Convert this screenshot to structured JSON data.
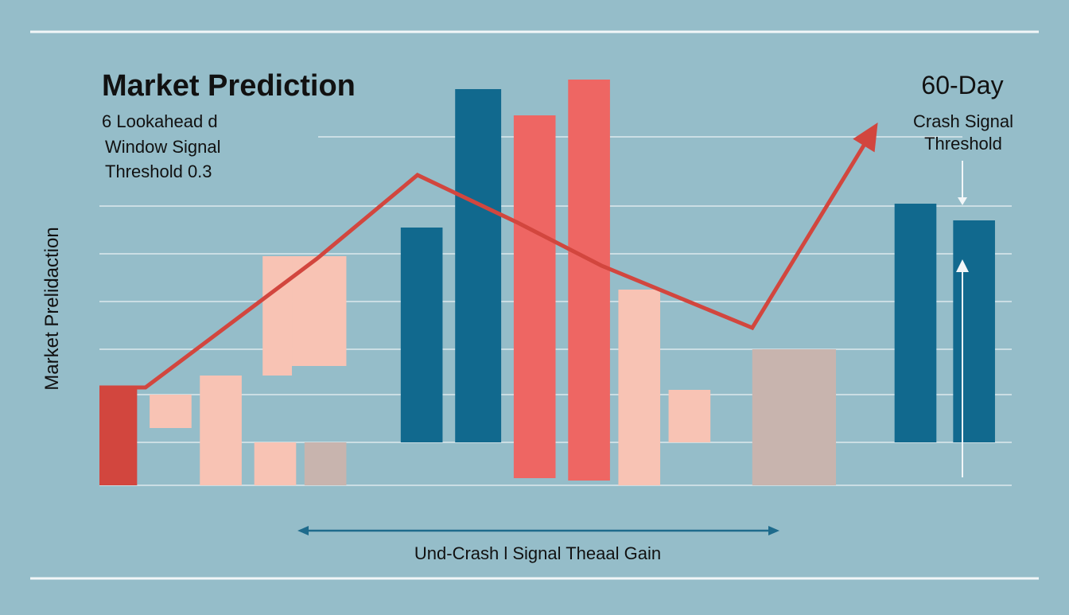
{
  "chart_data": {
    "type": "bar",
    "title": "Market Prediction",
    "subtitle_lines": [
      "6  Lookahead d",
      "Window Signal",
      "Threshold  0.3"
    ],
    "right_title": "60-Day",
    "right_subtitle_lines": [
      "Crash Signal",
      "Threshold"
    ],
    "ylabel": "Market Prelidaction",
    "xlabel": "Und-Crash l Signal Theaal  Gain",
    "grid": true,
    "colors": {
      "red": "#d2463e",
      "coral": "#ee6663",
      "peach": "#f8c3b4",
      "blue": "#11698e",
      "taupe": "#c8b4ae",
      "arrow": "#d2463e",
      "axis_arrow": "#1e6b8c",
      "grid": "#dde9ee",
      "frame": "#f2f6f8"
    },
    "bars": [
      {
        "x0": 0.0,
        "x1": 0.45,
        "y0": 0.0,
        "y1": 2.05,
        "color": "red"
      },
      {
        "x0": 0.6,
        "x1": 1.1,
        "y0": 1.2,
        "y1": 1.9,
        "color": "peach"
      },
      {
        "x0": 1.2,
        "x1": 1.7,
        "y0": 0.0,
        "y1": 2.3,
        "color": "peach"
      },
      {
        "x0": 1.85,
        "x1": 2.35,
        "y0": 0.0,
        "y1": 0.9,
        "color": "peach"
      },
      {
        "x0": 2.45,
        "x1": 2.95,
        "y0": 0.0,
        "y1": 0.9,
        "color": "taupe"
      },
      {
        "x0": 1.95,
        "x1": 2.3,
        "y0": 2.3,
        "y1": 4.8,
        "color": "peach"
      },
      {
        "x0": 2.3,
        "x1": 2.95,
        "y0": 2.5,
        "y1": 4.8,
        "color": "peach"
      },
      {
        "x0": 3.6,
        "x1": 4.1,
        "y0": 0.9,
        "y1": 5.4,
        "color": "blue"
      },
      {
        "x0": 4.25,
        "x1": 4.8,
        "y0": 0.9,
        "y1": 8.3,
        "color": "blue"
      },
      {
        "x0": 4.95,
        "x1": 5.45,
        "y0": 0.15,
        "y1": 7.75,
        "color": "coral"
      },
      {
        "x0": 5.6,
        "x1": 6.1,
        "y0": 0.1,
        "y1": 8.5,
        "color": "coral"
      },
      {
        "x0": 6.2,
        "x1": 6.7,
        "y0": 0.0,
        "y1": 4.1,
        "color": "peach"
      },
      {
        "x0": 6.8,
        "x1": 7.3,
        "y0": 0.9,
        "y1": 2.0,
        "color": "peach"
      },
      {
        "x0": 7.8,
        "x1": 8.8,
        "y0": 0.0,
        "y1": 2.85,
        "color": "taupe"
      },
      {
        "x0": 9.5,
        "x1": 10.0,
        "y0": 0.9,
        "y1": 5.9,
        "color": "blue"
      },
      {
        "x0": 10.2,
        "x1": 10.7,
        "y0": 0.9,
        "y1": 5.55,
        "color": "blue"
      }
    ],
    "trend_line": {
      "x": [
        0.0,
        0.55,
        2.6,
        2.6,
        3.8,
        5.0,
        6.0,
        7.8,
        9.3
      ],
      "y": [
        2.05,
        2.05,
        4.75,
        4.75,
        6.5,
        5.5,
        4.6,
        3.3,
        7.6
      ]
    },
    "xlim": [
      0,
      10.9
    ],
    "ylim": [
      0,
      8.5
    ],
    "gridlines_y": [
      0.9,
      1.9,
      2.85,
      3.85,
      4.85,
      5.85
    ]
  }
}
